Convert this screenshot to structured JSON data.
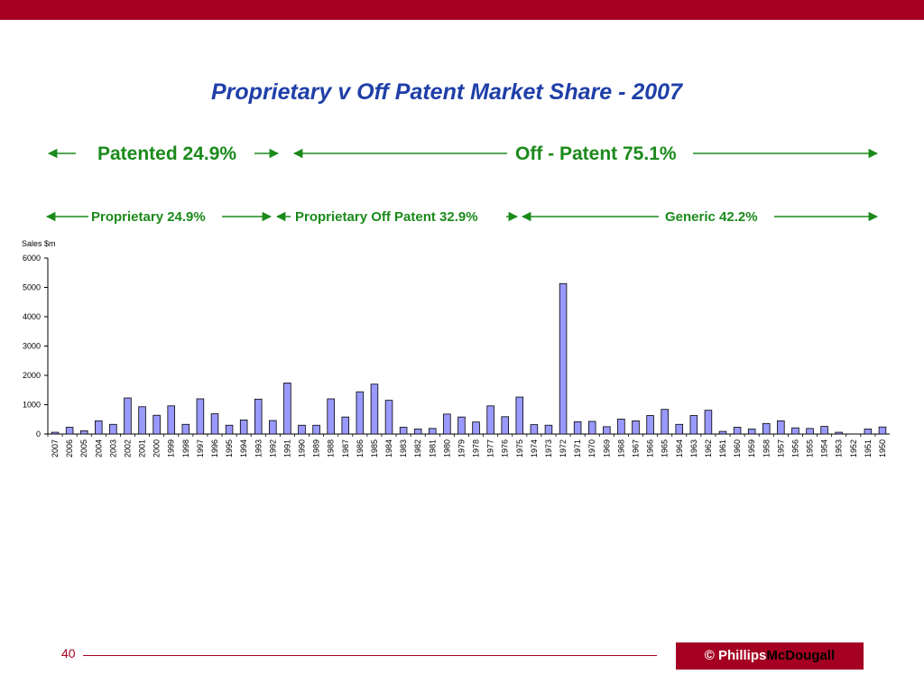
{
  "slide": {
    "title": "Proprietary v Off Patent Market Share - 2007",
    "page_number": "40",
    "brand": {
      "copyright": "© Phillips",
      "name_suffix": "McDougall"
    },
    "colors": {
      "accent": "#a50021",
      "title": "#1f3fa8",
      "label_green": "#1a8a1a",
      "bar_fill": "#9999ff"
    }
  },
  "annotations": {
    "patented": "Patented 24.9%",
    "off_patent": "Off - Patent 75.1%",
    "proprietary": "Proprietary 24.9%",
    "proprietary_off_patent": "Proprietary Off Patent 32.9%",
    "generic": "Generic 42.2%"
  },
  "chart_data": {
    "type": "bar",
    "ylabel": "Sales $m",
    "ylim": [
      0,
      6000
    ],
    "yticks": [
      "0",
      "1000",
      "2000",
      "3000",
      "4000",
      "5000",
      "6000"
    ],
    "grid": false,
    "categories": [
      "2007",
      "2006",
      "2005",
      "2004",
      "2003",
      "2002",
      "2001",
      "2000",
      "1999",
      "1998",
      "1997",
      "1996",
      "1995",
      "1994",
      "1993",
      "1992",
      "1991",
      "1990",
      "1989",
      "1988",
      "1987",
      "1986",
      "1985",
      "1984",
      "1983",
      "1982",
      "1981",
      "1980",
      "1979",
      "1978",
      "1977",
      "1976",
      "1975",
      "1974",
      "1973",
      "1972",
      "1971",
      "1970",
      "1969",
      "1968",
      "1967",
      "1966",
      "1965",
      "1964",
      "1963",
      "1962",
      "1961",
      "1960",
      "1959",
      "1958",
      "1957",
      "1956",
      "1955",
      "1954",
      "1953",
      "1952",
      "1951",
      "1950"
    ],
    "values": [
      60,
      230,
      110,
      450,
      330,
      1230,
      930,
      640,
      960,
      330,
      1200,
      690,
      300,
      480,
      1190,
      460,
      1740,
      300,
      300,
      1200,
      580,
      1440,
      1700,
      1150,
      230,
      170,
      190,
      680,
      580,
      410,
      960,
      590,
      1260,
      320,
      300,
      5130,
      420,
      430,
      250,
      510,
      450,
      630,
      840,
      330,
      630,
      810,
      90,
      230,
      170,
      360,
      450,
      210,
      190,
      260,
      60,
      0,
      170,
      240
    ]
  }
}
